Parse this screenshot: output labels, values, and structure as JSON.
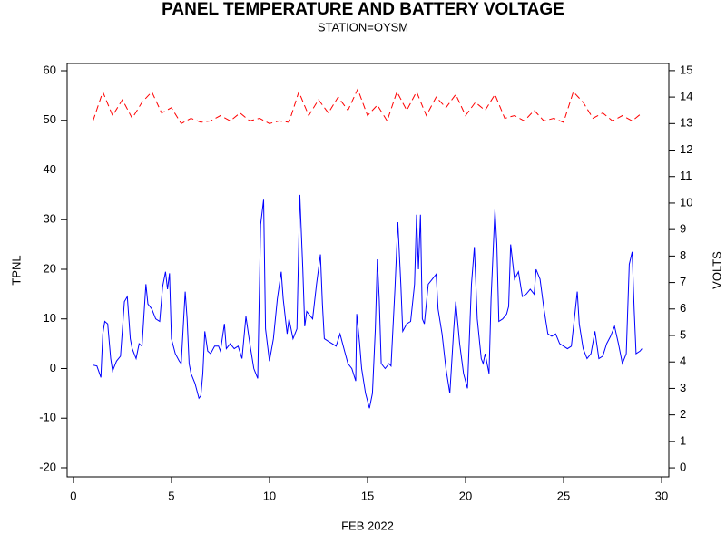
{
  "chart_data": {
    "type": "line",
    "title": "PANEL TEMPERATURE AND BATTERY VOLTAGE",
    "subtitle": "STATION=OYSM",
    "xlabel": "FEB 2022",
    "ylabel": "TPNL",
    "y2label": "VOLTS",
    "xlim": [
      -0.32,
      30.37
    ],
    "xticks": [
      0,
      5,
      10,
      15,
      20,
      25,
      30
    ],
    "ylim": [
      -21.83,
      61.46
    ],
    "yticks": [
      -20,
      -10,
      0,
      10,
      20,
      30,
      40,
      50,
      60
    ],
    "y2lim": [
      -0.34,
      15.27
    ],
    "y2ticks": [
      0,
      1,
      2,
      3,
      4,
      5,
      6,
      7,
      8,
      9,
      10,
      11,
      12,
      13,
      14,
      15
    ],
    "series": [
      {
        "name": "TPNL",
        "color": "#0000ff",
        "dash": false,
        "x": [
          1.0,
          1.2,
          1.4,
          1.5,
          1.6,
          1.75,
          1.9,
          2.0,
          2.2,
          2.4,
          2.6,
          2.75,
          2.9,
          3.0,
          3.2,
          3.35,
          3.5,
          3.6,
          3.7,
          3.8,
          4.0,
          4.2,
          4.4,
          4.55,
          4.7,
          4.8,
          4.9,
          5.0,
          5.2,
          5.4,
          5.5,
          5.7,
          5.8,
          5.9,
          6.0,
          6.2,
          6.4,
          6.5,
          6.6,
          6.7,
          6.85,
          7.0,
          7.2,
          7.4,
          7.5,
          7.7,
          7.8,
          8.0,
          8.2,
          8.4,
          8.6,
          8.8,
          9.0,
          9.2,
          9.4,
          9.55,
          9.7,
          9.8,
          10.0,
          10.2,
          10.4,
          10.6,
          10.7,
          10.9,
          11.0,
          11.2,
          11.4,
          11.55,
          11.7,
          11.8,
          11.9,
          12.2,
          12.4,
          12.6,
          12.7,
          12.8,
          13.0,
          13.2,
          13.4,
          13.6,
          13.8,
          14.0,
          14.2,
          14.4,
          14.45,
          14.6,
          14.7,
          14.9,
          15.1,
          15.25,
          15.4,
          15.5,
          15.6,
          15.7,
          15.9,
          16.1,
          16.2,
          16.4,
          16.55,
          16.7,
          16.8,
          17.0,
          17.2,
          17.4,
          17.5,
          17.6,
          17.7,
          17.8,
          17.9,
          18.1,
          18.3,
          18.5,
          18.6,
          18.8,
          19.0,
          19.2,
          19.4,
          19.5,
          19.7,
          19.9,
          20.1,
          20.3,
          20.45,
          20.6,
          20.8,
          20.9,
          21.0,
          21.2,
          21.3,
          21.5,
          21.6,
          21.7,
          21.9,
          22.1,
          22.2,
          22.3,
          22.5,
          22.7,
          22.9,
          23.1,
          23.3,
          23.5,
          23.6,
          23.8,
          24.0,
          24.2,
          24.4,
          24.6,
          24.8,
          25.0,
          25.2,
          25.4,
          25.55,
          25.7,
          25.8,
          26.0,
          26.2,
          26.4,
          26.6,
          26.8,
          27.0,
          27.2,
          27.4,
          27.6,
          27.8,
          28.0,
          28.2,
          28.35,
          28.5,
          28.6,
          28.7,
          28.9,
          29.0
        ],
        "values": [
          0.7,
          0.5,
          -1.8,
          7,
          9.5,
          9,
          2,
          -0.5,
          1.5,
          2.5,
          13.5,
          14.5,
          6,
          4,
          2,
          5,
          4.5,
          11,
          17,
          13,
          12,
          10,
          9.5,
          16.5,
          19.5,
          16,
          19.2,
          6,
          3,
          1.5,
          1,
          15.5,
          10,
          1,
          -1,
          -3,
          -6,
          -5.5,
          -1,
          7.5,
          3.5,
          3,
          4.5,
          4.5,
          3.5,
          9,
          4,
          5,
          4,
          4.5,
          2,
          10.5,
          5,
          0,
          -2,
          29,
          34,
          8,
          1.5,
          6,
          14,
          19.5,
          14,
          7,
          10,
          6,
          8,
          35,
          20,
          8.5,
          11.5,
          10,
          17,
          23,
          13,
          6,
          5.5,
          5,
          4.5,
          7,
          4,
          1,
          0,
          -2.5,
          11,
          5,
          0,
          -5,
          -8,
          -5,
          8,
          22,
          14,
          1,
          0,
          1,
          0.5,
          16,
          29.5,
          17,
          7.5,
          9,
          9.5,
          17,
          31,
          20,
          31,
          10,
          9,
          17,
          18,
          19,
          12,
          7,
          0,
          -5,
          8,
          13.5,
          5,
          -1,
          -4,
          17,
          24.5,
          10,
          2,
          1,
          3,
          -1,
          14,
          32,
          25,
          9.5,
          10,
          11,
          12.5,
          25,
          18,
          19.5,
          14.5,
          15,
          16,
          15,
          20,
          18,
          12,
          7,
          6.5,
          7,
          5,
          4.5,
          4,
          4.5,
          10,
          15.5,
          9,
          4,
          2,
          3,
          7.5,
          2,
          2.5,
          5,
          6.5,
          8.5,
          5,
          1,
          3,
          21,
          23.5,
          12,
          3,
          3.5,
          4
        ]
      },
      {
        "name": "VOLTS",
        "color": "#ff0000",
        "dash": true,
        "axis": "y2",
        "x": [
          1.0,
          1.5,
          2.0,
          2.5,
          3.0,
          3.5,
          4.0,
          4.5,
          5.0,
          5.5,
          6.0,
          6.5,
          7.0,
          7.5,
          8.0,
          8.5,
          9.0,
          9.5,
          10.0,
          10.5,
          11.0,
          11.5,
          12.0,
          12.5,
          13.0,
          13.5,
          14.0,
          14.5,
          15.0,
          15.5,
          16.0,
          16.5,
          17.0,
          17.5,
          18.0,
          18.5,
          19.0,
          19.5,
          20.0,
          20.5,
          21.0,
          21.5,
          22.0,
          22.5,
          23.0,
          23.5,
          24.0,
          24.5,
          25.0,
          25.5,
          26.0,
          26.5,
          27.0,
          27.5,
          28.0,
          28.5,
          29.0
        ],
        "values": [
          13.1,
          14.2,
          13.3,
          13.9,
          13.2,
          13.8,
          14.2,
          13.4,
          13.6,
          13.0,
          13.2,
          13.05,
          13.1,
          13.3,
          13.1,
          13.4,
          13.1,
          13.2,
          13.0,
          13.1,
          13.05,
          14.2,
          13.3,
          13.9,
          13.4,
          14.0,
          13.5,
          14.3,
          13.3,
          13.7,
          13.1,
          14.2,
          13.5,
          14.2,
          13.3,
          14.0,
          13.6,
          14.1,
          13.3,
          13.8,
          13.5,
          14.1,
          13.2,
          13.3,
          13.1,
          13.5,
          13.1,
          13.2,
          13.05,
          14.2,
          13.8,
          13.2,
          13.4,
          13.1,
          13.3,
          13.1,
          13.4
        ]
      }
    ]
  }
}
